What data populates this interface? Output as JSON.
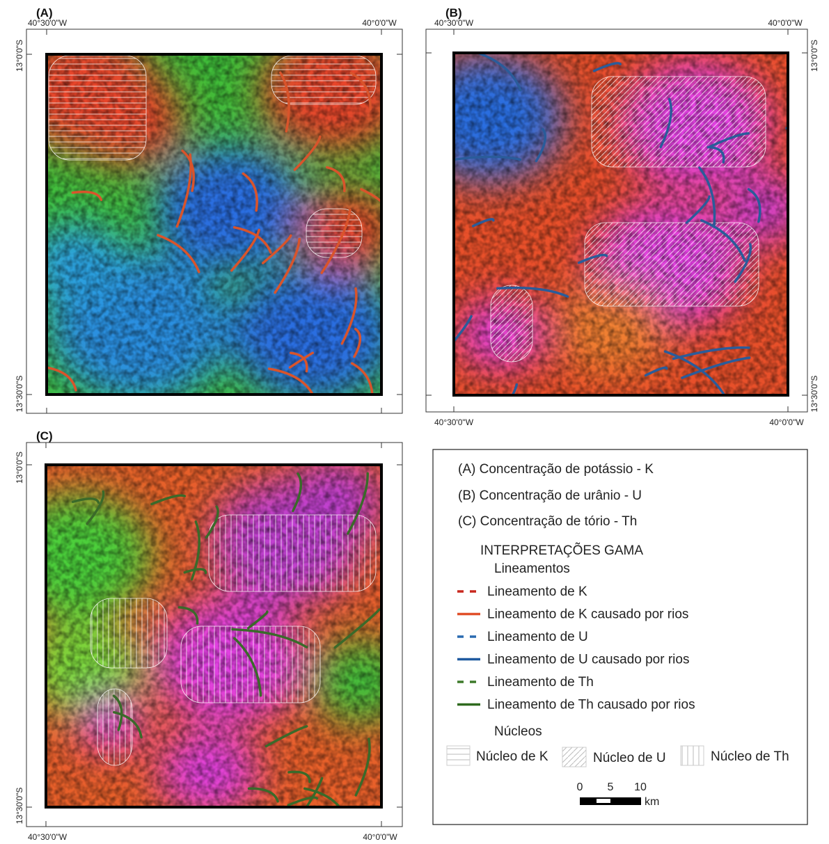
{
  "panels": [
    {
      "letter": "(A)",
      "lon_labels": [
        "40°30'0\"W",
        "40°0'0\"W"
      ],
      "lat_labels": [
        "13°0'0\"S",
        "13°30'0\"S"
      ]
    },
    {
      "letter": "(B)",
      "lon_labels": [
        "40°30'0\"W",
        "40°0'0\"W"
      ],
      "lat_labels": [
        "13°0'0\"S",
        "13°30'0\"S"
      ]
    },
    {
      "letter": "(C)",
      "lon_labels": [
        "40°30'0\"W",
        "40°0'0\"W"
      ],
      "lat_labels": [
        "13°0'0\"S",
        "13°30'0\"S"
      ]
    }
  ],
  "legend": {
    "titles": [
      "(A) Concentração de potássio - K",
      "(B) Concentração de urânio - U",
      "(C) Concentração de tório - Th"
    ],
    "section": "INTERPRETAÇÕES GAMA",
    "lineaments_heading": "Lineamentos",
    "lineaments": [
      "Lineamento de K",
      "Lineamento de K causado por rios",
      "Lineamento de U",
      "Lineamento de U causado por rios",
      "Lineamento de Th",
      "Lineamento de Th causado por rios"
    ],
    "nuclei_heading": "Núcleos",
    "nuclei": [
      "Núcleo de K",
      "Núcleo de U",
      "Núcleo de Th"
    ],
    "scale": {
      "ticks": [
        0,
        5,
        10
      ],
      "unit": "km"
    }
  }
}
